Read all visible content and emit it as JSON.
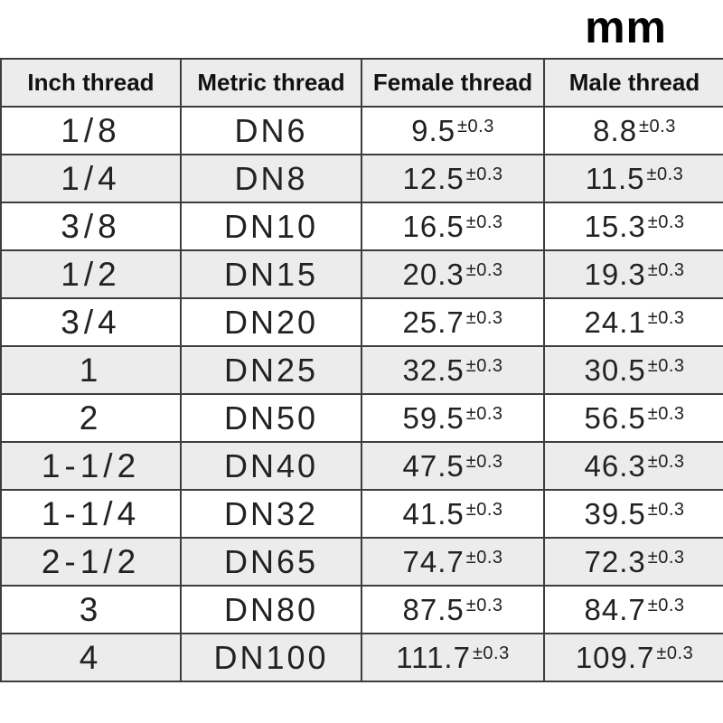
{
  "page": {
    "unit_label": "mm"
  },
  "table": {
    "tolerance": "±0.3",
    "columns": [
      "Inch thread",
      "Metric thread",
      "Female thread",
      "Male thread"
    ],
    "rows": [
      {
        "inch": "1/8",
        "metric": "DN6",
        "female": "9.5",
        "male": "8.8"
      },
      {
        "inch": "1/4",
        "metric": "DN8",
        "female": "12.5",
        "male": "11.5"
      },
      {
        "inch": "3/8",
        "metric": "DN10",
        "female": "16.5",
        "male": "15.3"
      },
      {
        "inch": "1/2",
        "metric": "DN15",
        "female": "20.3",
        "male": "19.3"
      },
      {
        "inch": "3/4",
        "metric": "DN20",
        "female": "25.7",
        "male": "24.1"
      },
      {
        "inch": "1",
        "metric": "DN25",
        "female": "32.5",
        "male": "30.5"
      },
      {
        "inch": "2",
        "metric": "DN50",
        "female": "59.5",
        "male": "56.5"
      },
      {
        "inch": "1-1/2",
        "metric": "DN40",
        "female": "47.5",
        "male": "46.3"
      },
      {
        "inch": "1-1/4",
        "metric": "DN32",
        "female": "41.5",
        "male": "39.5"
      },
      {
        "inch": "2-1/2",
        "metric": "DN65",
        "female": "74.7",
        "male": "72.3"
      },
      {
        "inch": "3",
        "metric": "DN80",
        "female": "87.5",
        "male": "84.7"
      },
      {
        "inch": "4",
        "metric": "DN100",
        "female": "111.7",
        "male": "109.7"
      }
    ]
  }
}
